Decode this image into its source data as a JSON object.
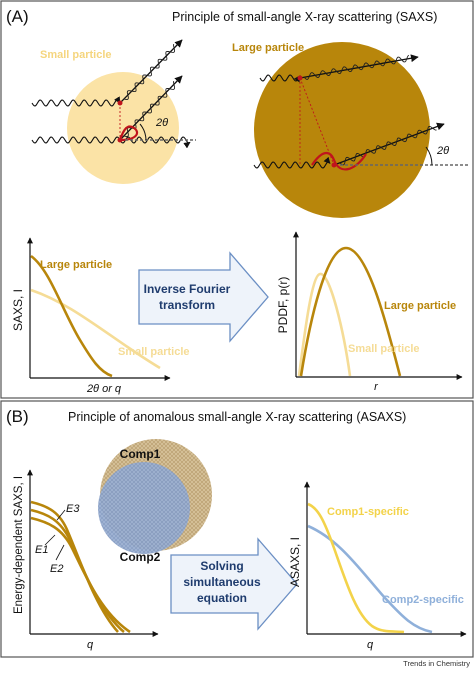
{
  "panel_a": {
    "label": "(A)",
    "title": "Principle of small-angle X-ray scattering (SAXS)",
    "small_particle_label": "Small particle",
    "large_particle_label": "Large particle",
    "angle_label": "2θ",
    "arrow_text": [
      "Inverse Fourier",
      "transform"
    ],
    "saxs_plot": {
      "ylabel": "SAXS, I",
      "xlabel": "2θ or q",
      "series": [
        {
          "name": "Large particle",
          "color": "#b8860b"
        },
        {
          "name": "Small particle",
          "color": "#f5dc96"
        }
      ]
    },
    "pddf_plot": {
      "ylabel": "PDDF, p(r)",
      "xlabel": "r",
      "series": [
        {
          "name": "Large particle",
          "color": "#b8860b"
        },
        {
          "name": "Small particle",
          "color": "#f5dc96"
        }
      ]
    }
  },
  "panel_b": {
    "label": "(B)",
    "title": "Principle of anomalous small-angle X-ray scattering (ASAXS)",
    "comp1_label": "Comp1",
    "comp2_label": "Comp2",
    "energy_labels": [
      "E3",
      "E1",
      "E2"
    ],
    "arrow_text": [
      "Solving",
      "simultaneous",
      "equation"
    ],
    "left_plot": {
      "ylabel": "Energy-dependent SAXS, I",
      "xlabel": "q"
    },
    "right_plot": {
      "ylabel": "ASAXS, I",
      "xlabel": "q",
      "series": [
        {
          "name": "Comp1-specific",
          "color": "#f3d34a"
        },
        {
          "name": "Comp2-specific",
          "color": "#8fb0da"
        }
      ]
    }
  },
  "footer": "Trends in Chemistry",
  "colors": {
    "gold": "#b8860b",
    "pale_yellow": "#fbe3a6",
    "light_yellow": "#f5dc96",
    "comp1_yellow": "#f3d34a",
    "comp2_blue": "#8fb0da",
    "navy": "#1f3c6e",
    "arrow_fill": "#eef3fa",
    "arrow_stroke": "#6b8fc4",
    "red": "#c0141c"
  }
}
